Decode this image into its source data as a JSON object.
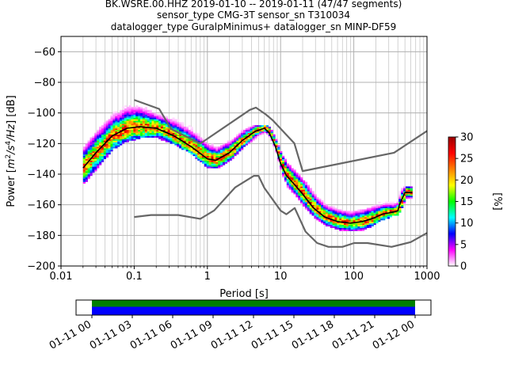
{
  "title_lines": [
    "BK.WSRE.00.HHZ   2019-01-10 -- 2019-01-11  (47/47 segments)",
    "sensor_type CMG-3T sensor_sn T310034",
    "datalogger_type GuralpMinimus+ datalogger_sn MINP-DF59"
  ],
  "chart_data": {
    "type": "heatmap",
    "xlabel": "Period [s]",
    "ylabel_parts": [
      "Power [",
      "m",
      "2",
      "/s",
      "4",
      "/Hz",
      "] [dB]"
    ],
    "xscale": "log",
    "xlim": [
      0.01,
      1000
    ],
    "ylim": [
      -200,
      -50
    ],
    "xticks": [
      0.01,
      0.1,
      1,
      10,
      100,
      1000
    ],
    "xtick_labels": [
      "0.01",
      "0.1",
      "1",
      "10",
      "100",
      "1000"
    ],
    "yticks": [
      -200,
      -180,
      -160,
      -140,
      -120,
      -100,
      -80,
      -60
    ],
    "ytick_labels": [
      "−200",
      "−180",
      "−160",
      "−140",
      "−120",
      "−100",
      "−80",
      "−60"
    ],
    "grid": true,
    "colorbar": {
      "label": "[%]",
      "range": [
        0,
        30
      ],
      "ticks": [
        0,
        5,
        10,
        15,
        20,
        25,
        30
      ],
      "tick_labels": [
        "0",
        "5",
        "10",
        "15",
        "20",
        "25",
        "30"
      ],
      "colormap_stops": [
        "#ffffff",
        "#ff00ff",
        "#0000ff",
        "#00ffff",
        "#00ff00",
        "#ffff00",
        "#ff8000",
        "#ff0000",
        "#990000"
      ]
    },
    "noise_models": {
      "color": "#666666",
      "high": {
        "period": [
          0.1,
          0.22,
          0.32,
          0.8,
          3.8,
          4.6,
          6.3,
          7.9,
          15.4,
          20,
          354.8,
          10000
        ],
        "power": [
          -91.5,
          -97.4,
          -110.5,
          -120.0,
          -98.0,
          -96.5,
          -101.0,
          -105.0,
          -119.8,
          -138.0,
          -126.0,
          -80.1
        ]
      },
      "low": {
        "period": [
          0.1,
          0.17,
          0.4,
          0.8,
          1.24,
          2.4,
          4.3,
          5,
          6,
          10,
          12,
          15.6,
          21.9,
          31.6,
          45,
          70,
          101,
          154,
          328,
          600,
          10000
        ],
        "power": [
          -168.0,
          -166.7,
          -166.7,
          -169.2,
          -163.7,
          -148.6,
          -141.1,
          -141.1,
          -149.0,
          -163.8,
          -166.2,
          -162.1,
          -177.5,
          -185.0,
          -187.5,
          -187.5,
          -185.0,
          -185.0,
          -187.5,
          -184.4,
          -151.5
        ]
      }
    },
    "mean_psd": {
      "color": "#000000",
      "period": [
        0.02,
        0.03,
        0.05,
        0.08,
        0.12,
        0.2,
        0.35,
        0.6,
        1,
        1.3,
        2,
        3,
        4.5,
        6,
        7,
        8.5,
        10,
        12,
        15,
        20,
        28,
        40,
        60,
        90,
        130,
        180,
        250,
        330,
        400,
        420,
        500,
        630
      ],
      "power": [
        -136,
        -126,
        -115,
        -110,
        -109,
        -110,
        -115,
        -122,
        -130,
        -131,
        -126,
        -118,
        -112,
        -110,
        -113,
        -122,
        -133,
        -141,
        -146,
        -153,
        -162,
        -168,
        -171,
        -172,
        -171,
        -169,
        -166,
        -165,
        -164,
        -160,
        -152,
        -152
      ]
    },
    "psd_band": {
      "period": [
        0.02,
        0.03,
        0.05,
        0.08,
        0.12,
        0.2,
        0.35,
        0.6,
        1,
        1.3,
        2,
        3,
        4.5,
        6,
        7,
        8.5,
        10,
        12,
        15,
        20,
        28,
        40,
        60,
        90,
        130,
        180,
        250,
        330,
        400,
        420,
        500,
        630
      ],
      "lower": [
        -146,
        -136,
        -123,
        -118,
        -116,
        -116,
        -120,
        -127,
        -136,
        -136,
        -131,
        -122,
        -116,
        -112,
        -116,
        -126,
        -139,
        -148,
        -153,
        -161,
        -168,
        -173,
        -176,
        -177,
        -176,
        -173,
        -169,
        -167,
        -166,
        -163,
        -156,
        -156
      ],
      "upper": [
        -122,
        -112,
        -100,
        -95,
        -95,
        -101,
        -104,
        -110,
        -120,
        -122,
        -118,
        -111,
        -108,
        -108,
        -110,
        -118,
        -127,
        -133,
        -138,
        -144,
        -153,
        -160,
        -163,
        -165,
        -163,
        -160,
        -158,
        -158,
        -156,
        -148,
        -148,
        -148
      ]
    },
    "time_coverage": {
      "tick_labels": [
        "01-11 00",
        "01-11 03",
        "01-11 06",
        "01-11 09",
        "01-11 12",
        "01-11 15",
        "01-11 18",
        "01-11 21",
        "01-12 00"
      ],
      "covered_color": "#0000ff",
      "processed_color": "#008000",
      "start_fraction": 0.0,
      "end_fraction": 1.0
    }
  }
}
